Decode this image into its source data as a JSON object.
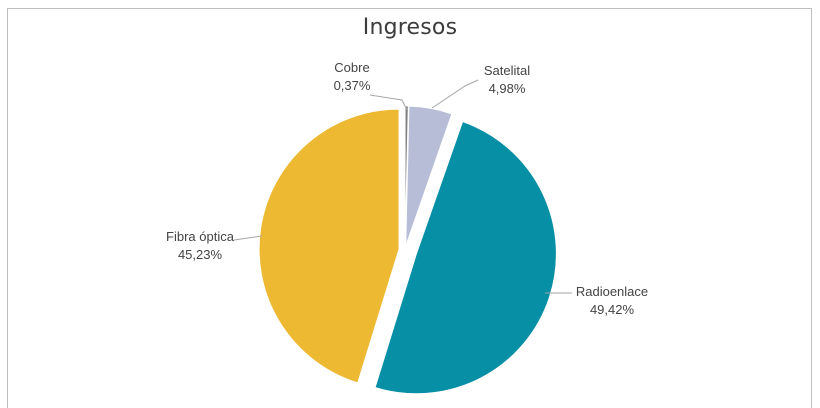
{
  "chart_data": {
    "type": "pie",
    "title": "Ingresos",
    "slices": [
      {
        "name": "Cobre",
        "value": 0.37,
        "label": "0,37%",
        "color": "#7f7f7f"
      },
      {
        "name": "Satelital",
        "value": 4.98,
        "label": "4,98%",
        "color": "#b7bdd6"
      },
      {
        "name": "Radioenlace",
        "value": 49.42,
        "label": "49,42%",
        "color": "#078fa6"
      },
      {
        "name": "Fibra óptica",
        "value": 45.23,
        "label": "45,23%",
        "color": "#edb933"
      }
    ]
  }
}
